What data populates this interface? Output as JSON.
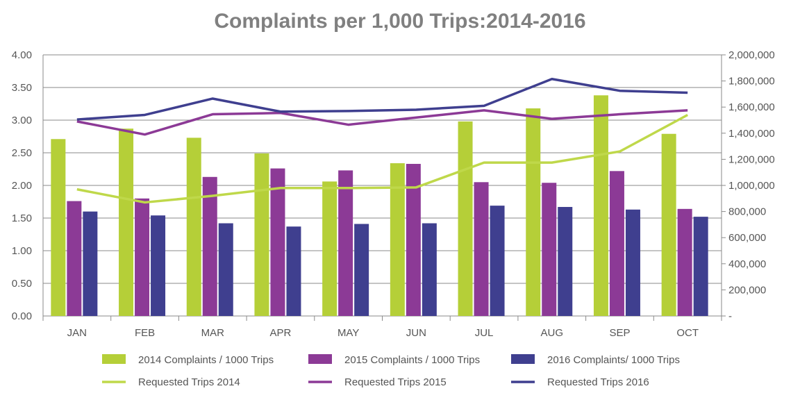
{
  "chart_data": {
    "type": "bar",
    "title": "Complaints per 1,000 Trips:2014-2016",
    "categories": [
      "JAN",
      "FEB",
      "MAR",
      "APR",
      "MAY",
      "JUN",
      "JUL",
      "AUG",
      "SEP",
      "OCT"
    ],
    "y_left": {
      "range": [
        0,
        4
      ],
      "ticks": [
        "0.00",
        "0.50",
        "1.00",
        "1.50",
        "2.00",
        "2.50",
        "3.00",
        "3.50",
        "4.00"
      ]
    },
    "y_right": {
      "range": [
        0,
        2000000
      ],
      "ticks": [
        "-",
        "200,000",
        "400,000",
        "600,000",
        "800,000",
        "1,000,000",
        "1,200,000",
        "1,400,000",
        "1,600,000",
        "1,800,000",
        "2,000,000"
      ]
    },
    "grid": "horizontal",
    "legend_position": "bottom",
    "bar_series": [
      {
        "name": "2014 Complaints / 1000 Trips",
        "color": "#b5cf38",
        "values": [
          2.71,
          2.87,
          2.73,
          2.49,
          2.06,
          2.34,
          2.98,
          3.18,
          3.38,
          2.79
        ]
      },
      {
        "name": "2015 Complaints / 1000 Trips",
        "color": "#8c3a96",
        "values": [
          1.76,
          1.8,
          2.13,
          2.26,
          2.23,
          2.33,
          2.05,
          2.04,
          2.22,
          1.64
        ]
      },
      {
        "name": "2016 Complaints/ 1000 Trips",
        "color": "#3f3f8f",
        "values": [
          1.6,
          1.54,
          1.42,
          1.37,
          1.41,
          1.42,
          1.69,
          1.67,
          1.63,
          1.52
        ]
      }
    ],
    "line_series": [
      {
        "name": "Requested Trips 2014",
        "color": "#bfd84a",
        "values": [
          970000,
          870000,
          920000,
          980000,
          980000,
          985000,
          1175000,
          1175000,
          1260000,
          1540000
        ]
      },
      {
        "name": "Requested Trips 2015",
        "color": "#8c3a96",
        "values": [
          1490000,
          1390000,
          1545000,
          1555000,
          1465000,
          1520000,
          1575000,
          1510000,
          1545000,
          1575000
        ]
      },
      {
        "name": "Requested Trips 2016",
        "color": "#3f3f8f",
        "values": [
          1505000,
          1540000,
          1665000,
          1565000,
          1570000,
          1580000,
          1610000,
          1815000,
          1725000,
          1710000
        ]
      }
    ]
  }
}
